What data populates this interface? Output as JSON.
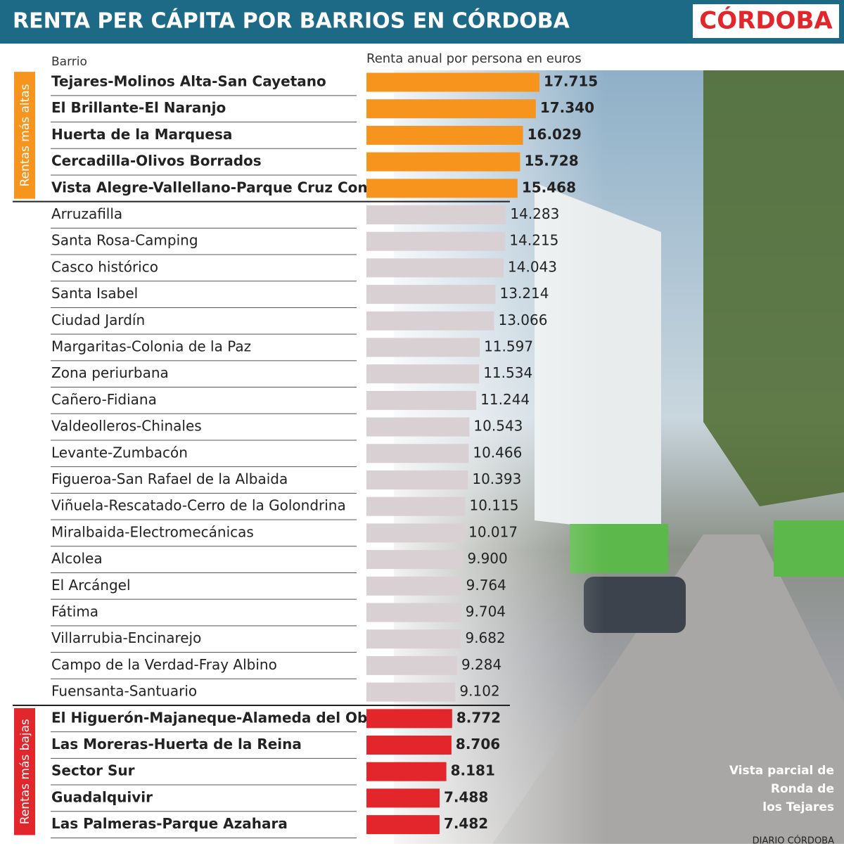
{
  "chart_data": {
    "type": "bar",
    "orientation": "horizontal",
    "title": "RENTA PER CÁPITA POR BARRIOS EN CÓRDOBA",
    "logo": "CÓRDOBA",
    "category_header": "Barrio",
    "value_header": "Renta anual por persona en euros",
    "caption": "Vista parcial de Ronda de los Tejares",
    "source": "DIARIO CÓRDOBA",
    "categories": [
      "Tejares-Molinos Alta-San Cayetano",
      "El Brillante-El Naranjo",
      "Huerta de la Marquesa",
      "Cercadilla-Olivos Borrados",
      "Vista Alegre-Vallellano-Parque Cruz Conde",
      "Arruzafilla",
      "Santa Rosa-Camping",
      "Casco histórico",
      "Santa Isabel",
      "Ciudad Jardín",
      "Margaritas-Colonia de la Paz",
      "Zona periurbana",
      "Cañero-Fidiana",
      "Valdeolleros-Chinales",
      "Levante-Zumbacón",
      "Figueroa-San Rafael de la Albaida",
      "Viñuela-Rescatado-Cerro de la Golondrina",
      "Miralbaida-Electromecánicas",
      "Alcolea",
      "El Arcángel",
      "Fátima",
      "Villarrubia-Encinarejo",
      "Campo de la Verdad-Fray Albino",
      "Fuensanta-Santuario",
      "El Higuerón-Majaneque-Alameda del Obispo",
      "Las Moreras-Huerta de la Reina",
      "Sector Sur",
      "Guadalquivir",
      "Las Palmeras-Parque Azahara"
    ],
    "values": [
      17715,
      17340,
      16029,
      15728,
      15468,
      14283,
      14215,
      14043,
      13214,
      13066,
      11597,
      11534,
      11244,
      10543,
      10466,
      10393,
      10115,
      10017,
      9900,
      9764,
      9704,
      9682,
      9284,
      9102,
      8772,
      8706,
      8181,
      7488,
      7482
    ],
    "value_labels": [
      "17.715",
      "17.340",
      "16.029",
      "15.728",
      "15.468",
      "14.283",
      "14.215",
      "14.043",
      "13.214",
      "13.066",
      "11.597",
      "11.534",
      "11.244",
      "10.543",
      "10.466",
      "10.393",
      "10.115",
      "10.017",
      "9.900",
      "9.764",
      "9.704",
      "9.682",
      "9.284",
      "9.102",
      "8.772",
      "8.706",
      "8.181",
      "7.488",
      "7.482"
    ],
    "colors": [
      "#f7941d",
      "#f7941d",
      "#f7941d",
      "#f7941d",
      "#f7941d",
      "#d9d0d3",
      "#d9d0d3",
      "#d9d0d3",
      "#d9d0d3",
      "#d9d0d3",
      "#d9d0d3",
      "#d9d0d3",
      "#d9d0d3",
      "#d9d0d3",
      "#d9d0d3",
      "#d9d0d3",
      "#d9d0d3",
      "#d9d0d3",
      "#d9d0d3",
      "#d9d0d3",
      "#d9d0d3",
      "#d9d0d3",
      "#d9d0d3",
      "#d9d0d3",
      "#e3262b",
      "#e3262b",
      "#e3262b",
      "#e3262b",
      "#e3262b"
    ],
    "groups": [
      {
        "label": "Rentas más altas",
        "color": "#f7941d"
      },
      {
        "label": "Rentas más bajas",
        "color": "#e3262b"
      }
    ],
    "xlim": [
      0,
      18000
    ]
  }
}
